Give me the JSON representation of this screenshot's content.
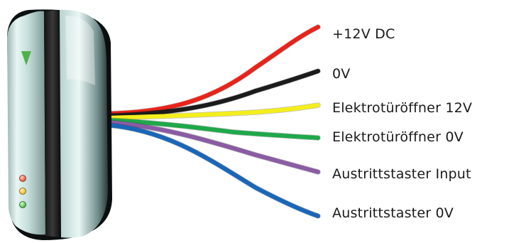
{
  "wires": [
    {
      "label": "+12V DC",
      "color": "#e8231a"
    },
    {
      "label": "0V",
      "color": "#1b1b1b"
    },
    {
      "label": "Elektrotüröffner 12V",
      "color": "#f4ee1c"
    },
    {
      "label": "Elektrotüröffner 0V",
      "color": "#1fa84a"
    },
    {
      "label": "Austrittstaster Input",
      "color": "#8a5ca3"
    },
    {
      "label": "Austrittstaster 0V",
      "color": "#1a66b8"
    }
  ],
  "device": {
    "indicator_led_color": "#4fb04a",
    "status_leds": [
      "#e8452c",
      "#f0b21c",
      "#3fae3a"
    ]
  }
}
